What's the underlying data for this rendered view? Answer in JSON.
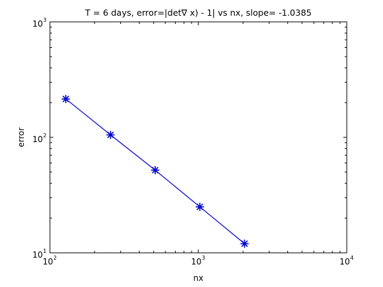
{
  "chart_data": {
    "type": "line",
    "title": "T = 6 days, error=|det∇ x) - 1| vs nx,  slope= -1.0385",
    "xlabel": "nx",
    "ylabel": "error",
    "xscale": "log",
    "yscale": "log",
    "xlim": [
      100,
      10000
    ],
    "ylim": [
      10,
      1000
    ],
    "grid": false,
    "legend": "none",
    "x_ticks": [
      {
        "base": "10",
        "exp": "2",
        "value": 100
      },
      {
        "base": "10",
        "exp": "3",
        "value": 1000
      },
      {
        "base": "10",
        "exp": "4",
        "value": 10000
      }
    ],
    "y_ticks": [
      {
        "base": "10",
        "exp": "1",
        "value": 10
      },
      {
        "base": "10",
        "exp": "2",
        "value": 100
      },
      {
        "base": "10",
        "exp": "3",
        "value": 1000
      }
    ],
    "series": [
      {
        "marker": "asterisk",
        "color": "#0000cc",
        "x": [
          128,
          256,
          512,
          1024,
          2048
        ],
        "y": [
          215,
          105,
          52,
          25,
          12
        ]
      }
    ]
  }
}
